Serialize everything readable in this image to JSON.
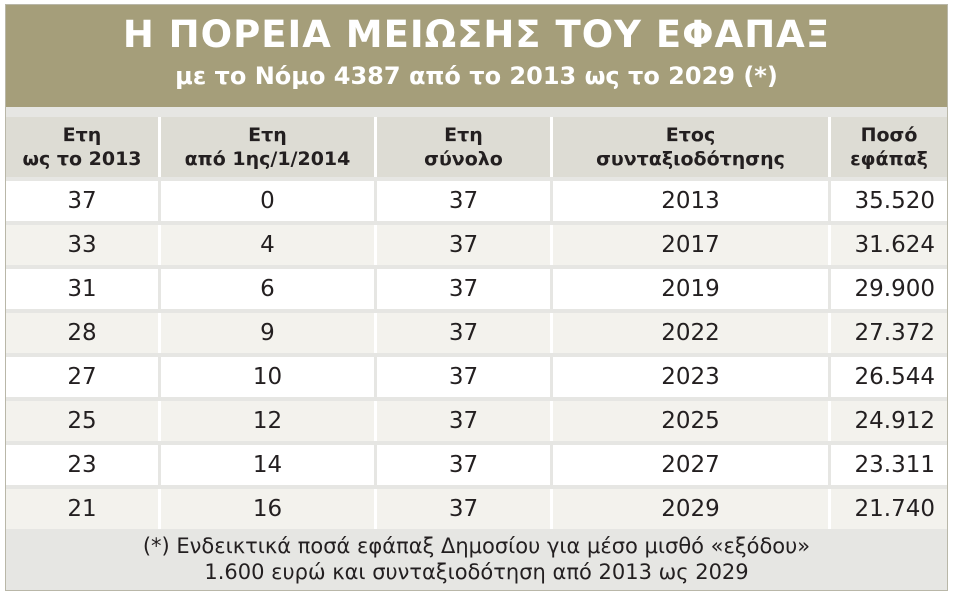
{
  "header": {
    "title": "Η ΠΟΡΕΙΑ ΜΕΙΩΣΗΣ ΤΟΥ ΕΦΑΠΑΞ",
    "subtitle": "με το Νόμο 4387 από το 2013 ως το 2029 (*)"
  },
  "colors": {
    "header_bg": "#a59e7a",
    "header_text": "#ffffff",
    "column_header_bg": "#dddcd4",
    "row_bg_light": "#ffffff",
    "row_bg_alt": "#f3f2ed",
    "frame_bg": "#e6e6e3",
    "text": "#231f20"
  },
  "table": {
    "columns": [
      {
        "line1": "Ετη",
        "line2": "ως το 2013"
      },
      {
        "line1": "Ετη",
        "line2": "από 1ης/1/2014"
      },
      {
        "line1": "Ετη",
        "line2": "σύνολο"
      },
      {
        "line1": "Ετος",
        "line2": "συνταξιοδότησης"
      },
      {
        "line1": "Ποσό",
        "line2": "εφάπαξ"
      }
    ],
    "rows": [
      [
        "37",
        "0",
        "37",
        "2013",
        "35.520"
      ],
      [
        "33",
        "4",
        "37",
        "2017",
        "31.624"
      ],
      [
        "31",
        "6",
        "37",
        "2019",
        "29.900"
      ],
      [
        "28",
        "9",
        "37",
        "2022",
        "27.372"
      ],
      [
        "27",
        "10",
        "37",
        "2023",
        "26.544"
      ],
      [
        "25",
        "12",
        "37",
        "2025",
        "24.912"
      ],
      [
        "23",
        "14",
        "37",
        "2027",
        "23.311"
      ],
      [
        "21",
        "16",
        "37",
        "2029",
        "21.740"
      ]
    ]
  },
  "footnote": {
    "line1": "(*) Ενδεικτικά ποσά εφάπαξ Δημοσίου για μέσο μισθό «εξόδου»",
    "line2": "1.600 ευρώ και συνταξιοδότηση από 2013 ως 2029"
  }
}
